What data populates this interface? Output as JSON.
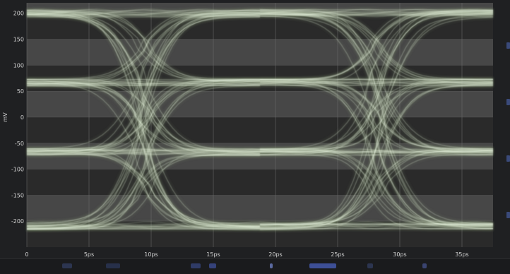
{
  "app": {
    "accent_trace": "#eef7e6",
    "trace_glow": "#8fa07d",
    "plot_bg_light": "#4a4a4a",
    "plot_bg_dark": "#2a2a2a",
    "grid": "#6c6c6c"
  },
  "chart_data": {
    "type": "eye-diagram",
    "xlabel": "",
    "ylabel": "mV",
    "xlim_ps": [
      0,
      37.5
    ],
    "ylim_mv": [
      -250,
      220
    ],
    "x_ticks": [
      {
        "v": 0,
        "label": "0"
      },
      {
        "v": 5,
        "label": "5ps"
      },
      {
        "v": 10,
        "label": "10ps"
      },
      {
        "v": 15,
        "label": "15ps"
      },
      {
        "v": 20,
        "label": "20ps"
      },
      {
        "v": 25,
        "label": "25ps"
      },
      {
        "v": 30,
        "label": "30ps"
      },
      {
        "v": 35,
        "label": "35ps"
      }
    ],
    "y_ticks": [
      {
        "v": 200,
        "label": "200"
      },
      {
        "v": 150,
        "label": "150"
      },
      {
        "v": 100,
        "label": "100"
      },
      {
        "v": 50,
        "label": "50"
      },
      {
        "v": 0,
        "label": "0"
      },
      {
        "v": -50,
        "label": "-50"
      },
      {
        "v": -100,
        "label": "-100"
      },
      {
        "v": -150,
        "label": "-150"
      },
      {
        "v": -200,
        "label": "-200"
      }
    ],
    "levels_mv": [
      200,
      67,
      -67,
      -210
    ],
    "unit_interval_ps": 18.75,
    "eye_centers_ps": [
      0,
      18.75,
      37.5
    ],
    "crossings_ps": [
      9.4,
      28.1
    ],
    "grid": true
  }
}
